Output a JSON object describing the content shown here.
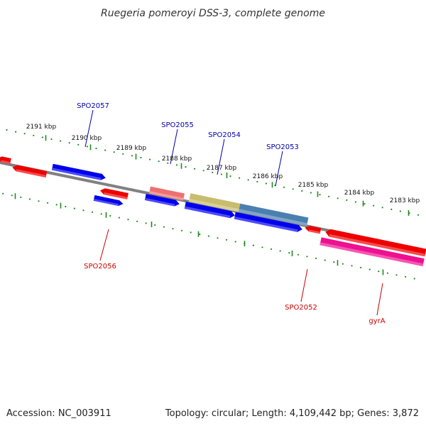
{
  "title": "Ruegeria pomeroyi DSS-3, complete genome",
  "footer": {
    "accession": "Accession: NC_003911",
    "summary": "Topology: circular; Length: 4,109,442 bp; Genes: 3,872"
  },
  "colors": {
    "backbone": "#808080",
    "tick": "#1f8a1f",
    "forward_label": "#0000aa",
    "reverse_label": "#cc0000",
    "blue": "#0000ee",
    "red": "#ee0000",
    "pink": "#ee1090",
    "light_red": "#ee7070",
    "khaki": "#c8bc6e",
    "steel": "#4a80b0"
  },
  "kbp_ticks": [
    "2191 kbp",
    "2190 kbp",
    "2189 kbp",
    "2188 kbp",
    "2187 kbp",
    "2186 kbp",
    "2185 kbp",
    "2184 kbp",
    "2183 kbp"
  ],
  "gene_labels": {
    "top": [
      "SPO2057",
      "SPO2055",
      "SPO2054",
      "SPO2053"
    ],
    "bottom": [
      "SPO2056",
      "SPO2052",
      "gyrA"
    ]
  }
}
